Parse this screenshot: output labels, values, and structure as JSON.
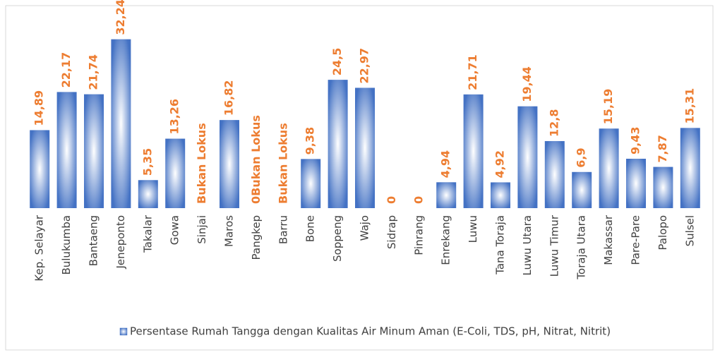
{
  "chart_data": {
    "type": "bar",
    "categories": [
      "Kep. Selayar",
      "Bulukumba",
      "Bantaeng",
      "Jeneponto",
      "Takalar",
      "Gowa",
      "Sinjai",
      "Maros",
      "Pangkep",
      "Barru",
      "Bone",
      "Soppeng",
      "Wajo",
      "Sidrap",
      "Pinrang",
      "Enrekang",
      "Luwu",
      "Tana Toraja",
      "Luwu Utara",
      "Luwu Timur",
      "Toraja Utara",
      "Makassar",
      "Pare-Pare",
      "Palopo",
      "Sulsel"
    ],
    "series": [
      {
        "name": "Persentase Rumah Tangga dengan Kualitas Air Minum Aman (E-Coli, TDS, pH, Nitrat, Nitrit)",
        "color": "#4472c4",
        "values": [
          14.89,
          22.17,
          21.74,
          32.24,
          5.35,
          13.26,
          null,
          16.82,
          null,
          null,
          9.38,
          24.5,
          22.97,
          0,
          0,
          4.94,
          21.71,
          4.92,
          19.44,
          12.8,
          6.9,
          15.19,
          9.43,
          7.87,
          15.31
        ],
        "value_labels": [
          "14,89",
          "22,17",
          "21,74",
          "32,24",
          "5,35",
          "13,26",
          "Bukan Lokus",
          "16,82",
          "0Bukan Lokus",
          "Bukan Lokus",
          "9,38",
          "24,5",
          "22,97",
          "0",
          "0",
          "4,94",
          "21,71",
          "4,92",
          "19,44",
          "12,8",
          "6,9",
          "15,19",
          "9,43",
          "7,87",
          "15,31"
        ]
      }
    ],
    "label_color": "#ed7d31",
    "ylim": [
      0,
      33
    ]
  }
}
